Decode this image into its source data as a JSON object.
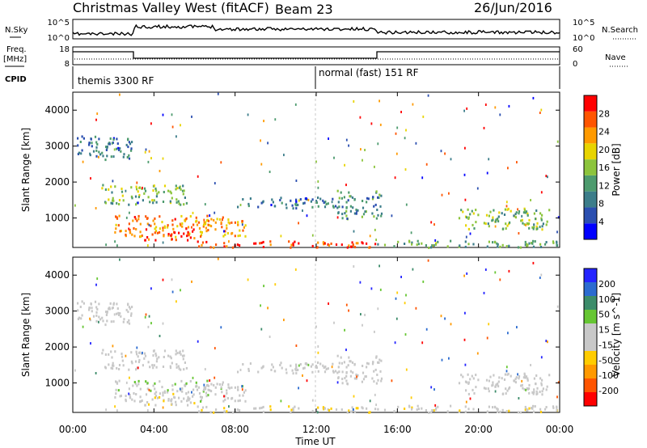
{
  "header": {
    "title": "Christmas Valley West (fitACF)",
    "beam": "Beam 23",
    "date": "26/Jun/2016"
  },
  "panels": {
    "nsky_label": "N.Sky",
    "nsky_top": "10^5",
    "nsky_bottom": "10^0",
    "nsearch_label": "N.Search",
    "nsearch_top": "10^5",
    "nsearch_bottom": "10^0",
    "freq_label": "Freq.",
    "freq_unit": "[MHz]",
    "freq_top": "18",
    "freq_bottom": "8",
    "nave_label": "Nave",
    "nave_top": "60",
    "nave_bottom": "0",
    "cpid_label": "CPID",
    "cpid_1": "themis 3300 RF",
    "cpid_2": "normal (fast) 151 RF"
  },
  "colors": {
    "power_scale": [
      "#0000ff",
      "#2b4fb0",
      "#3c7d8a",
      "#4d9b6e",
      "#8cc43c",
      "#e8d400",
      "#ff9a00",
      "#ff5500",
      "#ff0000"
    ],
    "velocity_scale": [
      "#2424ff",
      "#2b6bd0",
      "#3c8c6a",
      "#66c633",
      "#c8c8c8",
      "#c8c8c8",
      "#ffcc00",
      "#ff9900",
      "#ff5500",
      "#ff0000"
    ]
  },
  "chart_data": [
    {
      "type": "heatmap",
      "title": "Power",
      "xlabel": "",
      "ylabel": "Slant Range [km]",
      "x_ticks": [
        "00:00",
        "04:00",
        "08:00",
        "12:00",
        "16:00",
        "20:00",
        "00:00"
      ],
      "x_range_hours": [
        0,
        24
      ],
      "y_ticks": [
        "1000",
        "2000",
        "3000",
        "4000"
      ],
      "y_range_km": [
        180,
        4500
      ],
      "colorbar": {
        "label": "Power [dB]",
        "ticks": [
          "4",
          "8",
          "12",
          "16",
          "20",
          "24",
          "28"
        ],
        "range": [
          0,
          30
        ]
      },
      "echo_regions": [
        {
          "t0": 0.2,
          "t1": 3.0,
          "r0": 2650,
          "r1": 3300,
          "dB": 8
        },
        {
          "t0": 1.4,
          "t1": 5.6,
          "r0": 1400,
          "r1": 1950,
          "dB": 14
        },
        {
          "t0": 2.0,
          "t1": 8.5,
          "r0": 500,
          "r1": 1100,
          "dB": 22
        },
        {
          "t0": 3.5,
          "t1": 6.0,
          "r0": 400,
          "r1": 750,
          "dB": 28
        },
        {
          "t0": 6.0,
          "t1": 15.0,
          "r0": 200,
          "r1": 380,
          "dB": 26
        },
        {
          "t0": 8.0,
          "t1": 13.0,
          "r0": 1300,
          "r1": 1600,
          "dB": 8
        },
        {
          "t0": 13.0,
          "t1": 15.2,
          "r0": 1000,
          "r1": 1800,
          "dB": 10
        },
        {
          "t0": 15.0,
          "t1": 24.0,
          "r0": 200,
          "r1": 400,
          "dB": 12
        },
        {
          "t0": 19.0,
          "t1": 23.5,
          "r0": 700,
          "r1": 1300,
          "dB": 14
        }
      ]
    },
    {
      "type": "heatmap",
      "title": "Velocity",
      "xlabel": "Time UT",
      "ylabel": "Slant Range [km]",
      "x_ticks": [
        "00:00",
        "04:00",
        "08:00",
        "12:00",
        "16:00",
        "20:00",
        "00:00"
      ],
      "x_range_hours": [
        0,
        24
      ],
      "y_ticks": [
        "1000",
        "2000",
        "3000",
        "4000"
      ],
      "y_range_km": [
        180,
        4500
      ],
      "colorbar": {
        "label": "Velocity [m s^-1]",
        "ticks": [
          "200",
          "100",
          "50",
          "15",
          "-15",
          "-50",
          "-100",
          "-200"
        ],
        "range": [
          -250,
          250
        ]
      },
      "echo_regions": [
        {
          "t0": 0.2,
          "t1": 3.0,
          "r0": 2650,
          "r1": 3300,
          "v": 0
        },
        {
          "t0": 1.4,
          "t1": 5.6,
          "r0": 1400,
          "r1": 1950,
          "v": 0
        },
        {
          "t0": 2.0,
          "t1": 8.5,
          "r0": 500,
          "r1": 1100,
          "v": 30
        },
        {
          "t0": 3.5,
          "t1": 6.0,
          "r0": 400,
          "r1": 750,
          "v": -30
        },
        {
          "t0": 6.0,
          "t1": 15.0,
          "r0": 200,
          "r1": 380,
          "v": -40
        },
        {
          "t0": 8.0,
          "t1": 13.0,
          "r0": 1300,
          "r1": 1600,
          "v": 0
        },
        {
          "t0": 13.0,
          "t1": 15.2,
          "r0": 1000,
          "r1": 1800,
          "v": 0
        },
        {
          "t0": 15.0,
          "t1": 24.0,
          "r0": 200,
          "r1": 400,
          "v": -30
        },
        {
          "t0": 19.0,
          "t1": 23.5,
          "r0": 700,
          "r1": 1300,
          "v": 0
        }
      ]
    }
  ]
}
